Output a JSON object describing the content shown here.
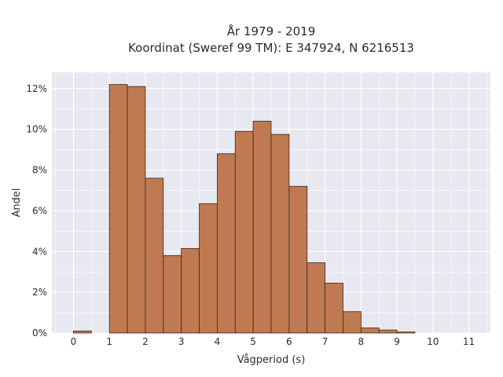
{
  "chart_data": {
    "type": "bar",
    "title": "År 1979 - 2019",
    "subtitle": "Koordinat (Sweref 99 TM): E 347924, N 6216513",
    "xlabel": "Vågperiod (s)",
    "ylabel": "Andel",
    "bin_width": 0.5,
    "bins": [
      {
        "x0": 0.0,
        "value": 0.1
      },
      {
        "x0": 0.5,
        "value": 0.0
      },
      {
        "x0": 1.0,
        "value": 12.2
      },
      {
        "x0": 1.5,
        "value": 12.1
      },
      {
        "x0": 2.0,
        "value": 7.6
      },
      {
        "x0": 2.5,
        "value": 3.8
      },
      {
        "x0": 3.0,
        "value": 4.15
      },
      {
        "x0": 3.5,
        "value": 6.35
      },
      {
        "x0": 4.0,
        "value": 8.8
      },
      {
        "x0": 4.5,
        "value": 9.9
      },
      {
        "x0": 5.0,
        "value": 10.4
      },
      {
        "x0": 5.5,
        "value": 9.75
      },
      {
        "x0": 6.0,
        "value": 7.2
      },
      {
        "x0": 6.5,
        "value": 3.45
      },
      {
        "x0": 7.0,
        "value": 2.45
      },
      {
        "x0": 7.5,
        "value": 1.05
      },
      {
        "x0": 8.0,
        "value": 0.25
      },
      {
        "x0": 8.5,
        "value": 0.15
      },
      {
        "x0": 9.0,
        "value": 0.05
      }
    ],
    "xlim": [
      -0.6,
      11.6
    ],
    "ylim": [
      0,
      12.8
    ],
    "x_ticks": [
      0,
      1,
      2,
      3,
      4,
      5,
      6,
      7,
      8,
      9,
      10,
      11
    ],
    "x_tick_labels": [
      "0",
      "1",
      "2",
      "3",
      "4",
      "5",
      "6",
      "7",
      "8",
      "9",
      "10",
      "11"
    ],
    "y_ticks": [
      0,
      2,
      4,
      6,
      8,
      10,
      12
    ],
    "y_tick_labels": [
      "0%",
      "2%",
      "4%",
      "6%",
      "8%",
      "10%",
      "12%"
    ],
    "grid": true,
    "colors": {
      "bar_fill": "#bf7a52",
      "bar_stroke": "#3a2a20",
      "plot_bg": "#e8e8f0",
      "grid": "#ffffff"
    }
  }
}
